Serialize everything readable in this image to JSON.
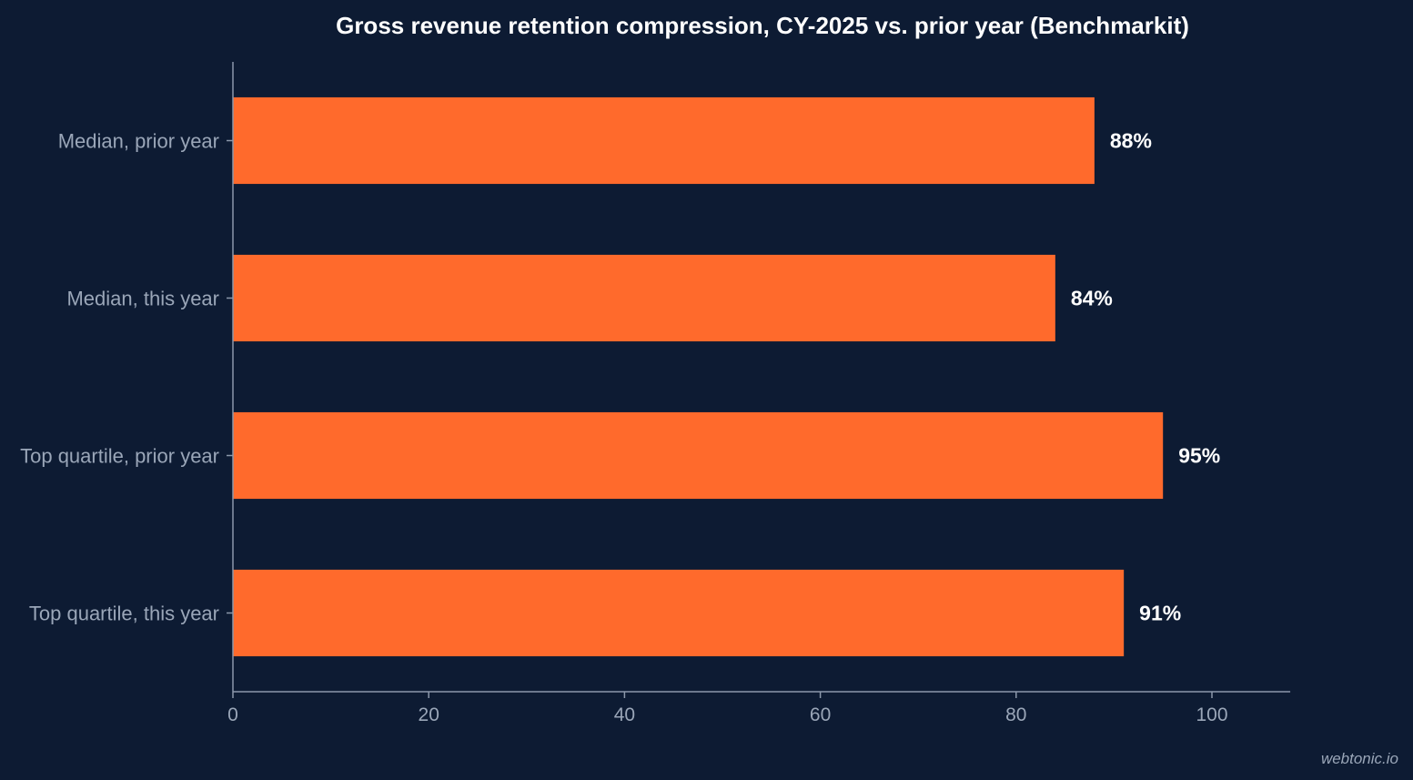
{
  "colors": {
    "background": "#0d1b33",
    "bar": "#ff6a2c",
    "axis": "#8c98ab",
    "tick_text": "#9aa6b8",
    "value_text": "#ffffff"
  },
  "chart_data": {
    "type": "bar",
    "orientation": "horizontal",
    "title": "Gross revenue retention compression, CY-2025 vs. prior year (Benchmarkit)",
    "categories": [
      "Median, prior year",
      "Median, this year",
      "Top quartile, prior year",
      "Top quartile, this year"
    ],
    "values": [
      88,
      84,
      95,
      91
    ],
    "value_labels": [
      "88%",
      "84%",
      "95%",
      "91%"
    ],
    "xlabel": "",
    "ylabel": "",
    "xlim": [
      0,
      108
    ],
    "xticks": [
      0,
      20,
      40,
      60,
      80,
      100
    ],
    "grid": false,
    "legend": "none"
  },
  "watermark": "webtonic.io"
}
